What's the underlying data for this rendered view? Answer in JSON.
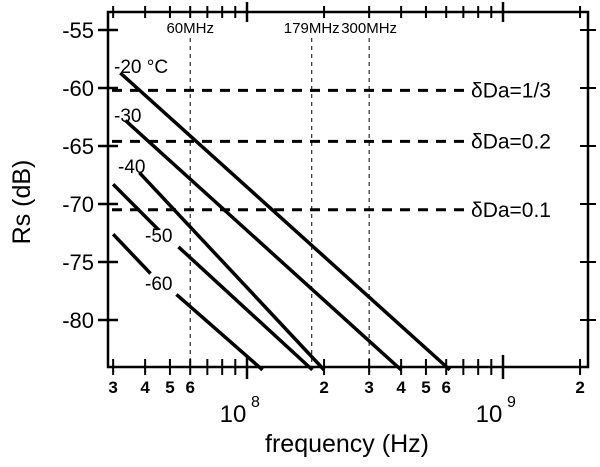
{
  "chart_data": {
    "type": "line",
    "title": "",
    "xlabel": "frequency (Hz)",
    "ylabel": "Rs (dB)",
    "x_scale": "log",
    "xlim": [
      28000000,
      2100000000
    ],
    "ylim": [
      -85.8,
      -53.5
    ],
    "grid": false,
    "y_ticks": [
      -55,
      -60,
      -65,
      -70,
      -75,
      -80
    ],
    "y_tick_labels": [
      "-55",
      "-60",
      "-65",
      "-70",
      "-75",
      "-80"
    ],
    "x_major_ticks": [
      {
        "value": 100000000,
        "base": "10",
        "exp": "8"
      },
      {
        "value": 1000000000,
        "base": "10",
        "exp": "9"
      }
    ],
    "x_minor_tick_labels": [
      {
        "value": 30000000,
        "label": "3"
      },
      {
        "value": 40000000,
        "label": "4"
      },
      {
        "value": 50000000,
        "label": "5"
      },
      {
        "value": 60000000,
        "label": "6"
      },
      {
        "value": 200000000,
        "label": "2"
      },
      {
        "value": 300000000,
        "label": "3"
      },
      {
        "value": 400000000,
        "label": "4"
      },
      {
        "value": 500000000,
        "label": "5"
      },
      {
        "value": 600000000,
        "label": "6"
      },
      {
        "value": 2000000000,
        "label": "2"
      }
    ],
    "x_minor_ticks_unlabeled": [
      70000000,
      80000000,
      90000000,
      700000000,
      800000000,
      900000000
    ],
    "series": [
      {
        "name": "-20 °C",
        "label": "-20 °C",
        "segments": [
          [
            [
              32000000,
              -58.7
            ],
            [
              620000000,
              -84.3
            ]
          ]
        ]
      },
      {
        "name": "-30",
        "label": "-30",
        "segments": [
          [
            [
              33500000,
              -62.8
            ],
            [
              400000000,
              -84.3
            ]
          ]
        ]
      },
      {
        "name": "-40",
        "label": "-40",
        "segments": [
          [
            [
              38000000,
              -67.3
            ],
            [
              200000000,
              -84.3
            ]
          ]
        ]
      },
      {
        "name": "-50",
        "label": "-50",
        "segments": [
          [
            [
              30000000,
              -68.3
            ],
            [
              45000000,
              -72.2
            ]
          ],
          [
            [
              54000000,
              -73.7
            ],
            [
              180000000,
              -84.3
            ]
          ]
        ]
      },
      {
        "name": "-60",
        "label": "-60",
        "segments": [
          [
            [
              30000000,
              -72.6
            ],
            [
              42000000,
              -76.0
            ]
          ],
          [
            [
              53000000,
              -77.8
            ],
            [
              115000000,
              -84.3
            ]
          ]
        ]
      }
    ],
    "reference_lines_horizontal": [
      {
        "label": "δDa=1/3",
        "y": -60.2
      },
      {
        "label": "δDa=0.2",
        "y": -64.6
      },
      {
        "label": "δDa=0.1",
        "y": -70.5
      }
    ],
    "reference_lines_vertical": [
      {
        "label": "60MHz",
        "x": 60000000
      },
      {
        "label": "179MHz",
        "x": 179000000
      },
      {
        "label": "300MHz",
        "x": 300000000
      }
    ],
    "annotations": [
      "-20 °C",
      "-30",
      "-40",
      "-50",
      "-60"
    ],
    "legend": "none (inline labels)"
  }
}
